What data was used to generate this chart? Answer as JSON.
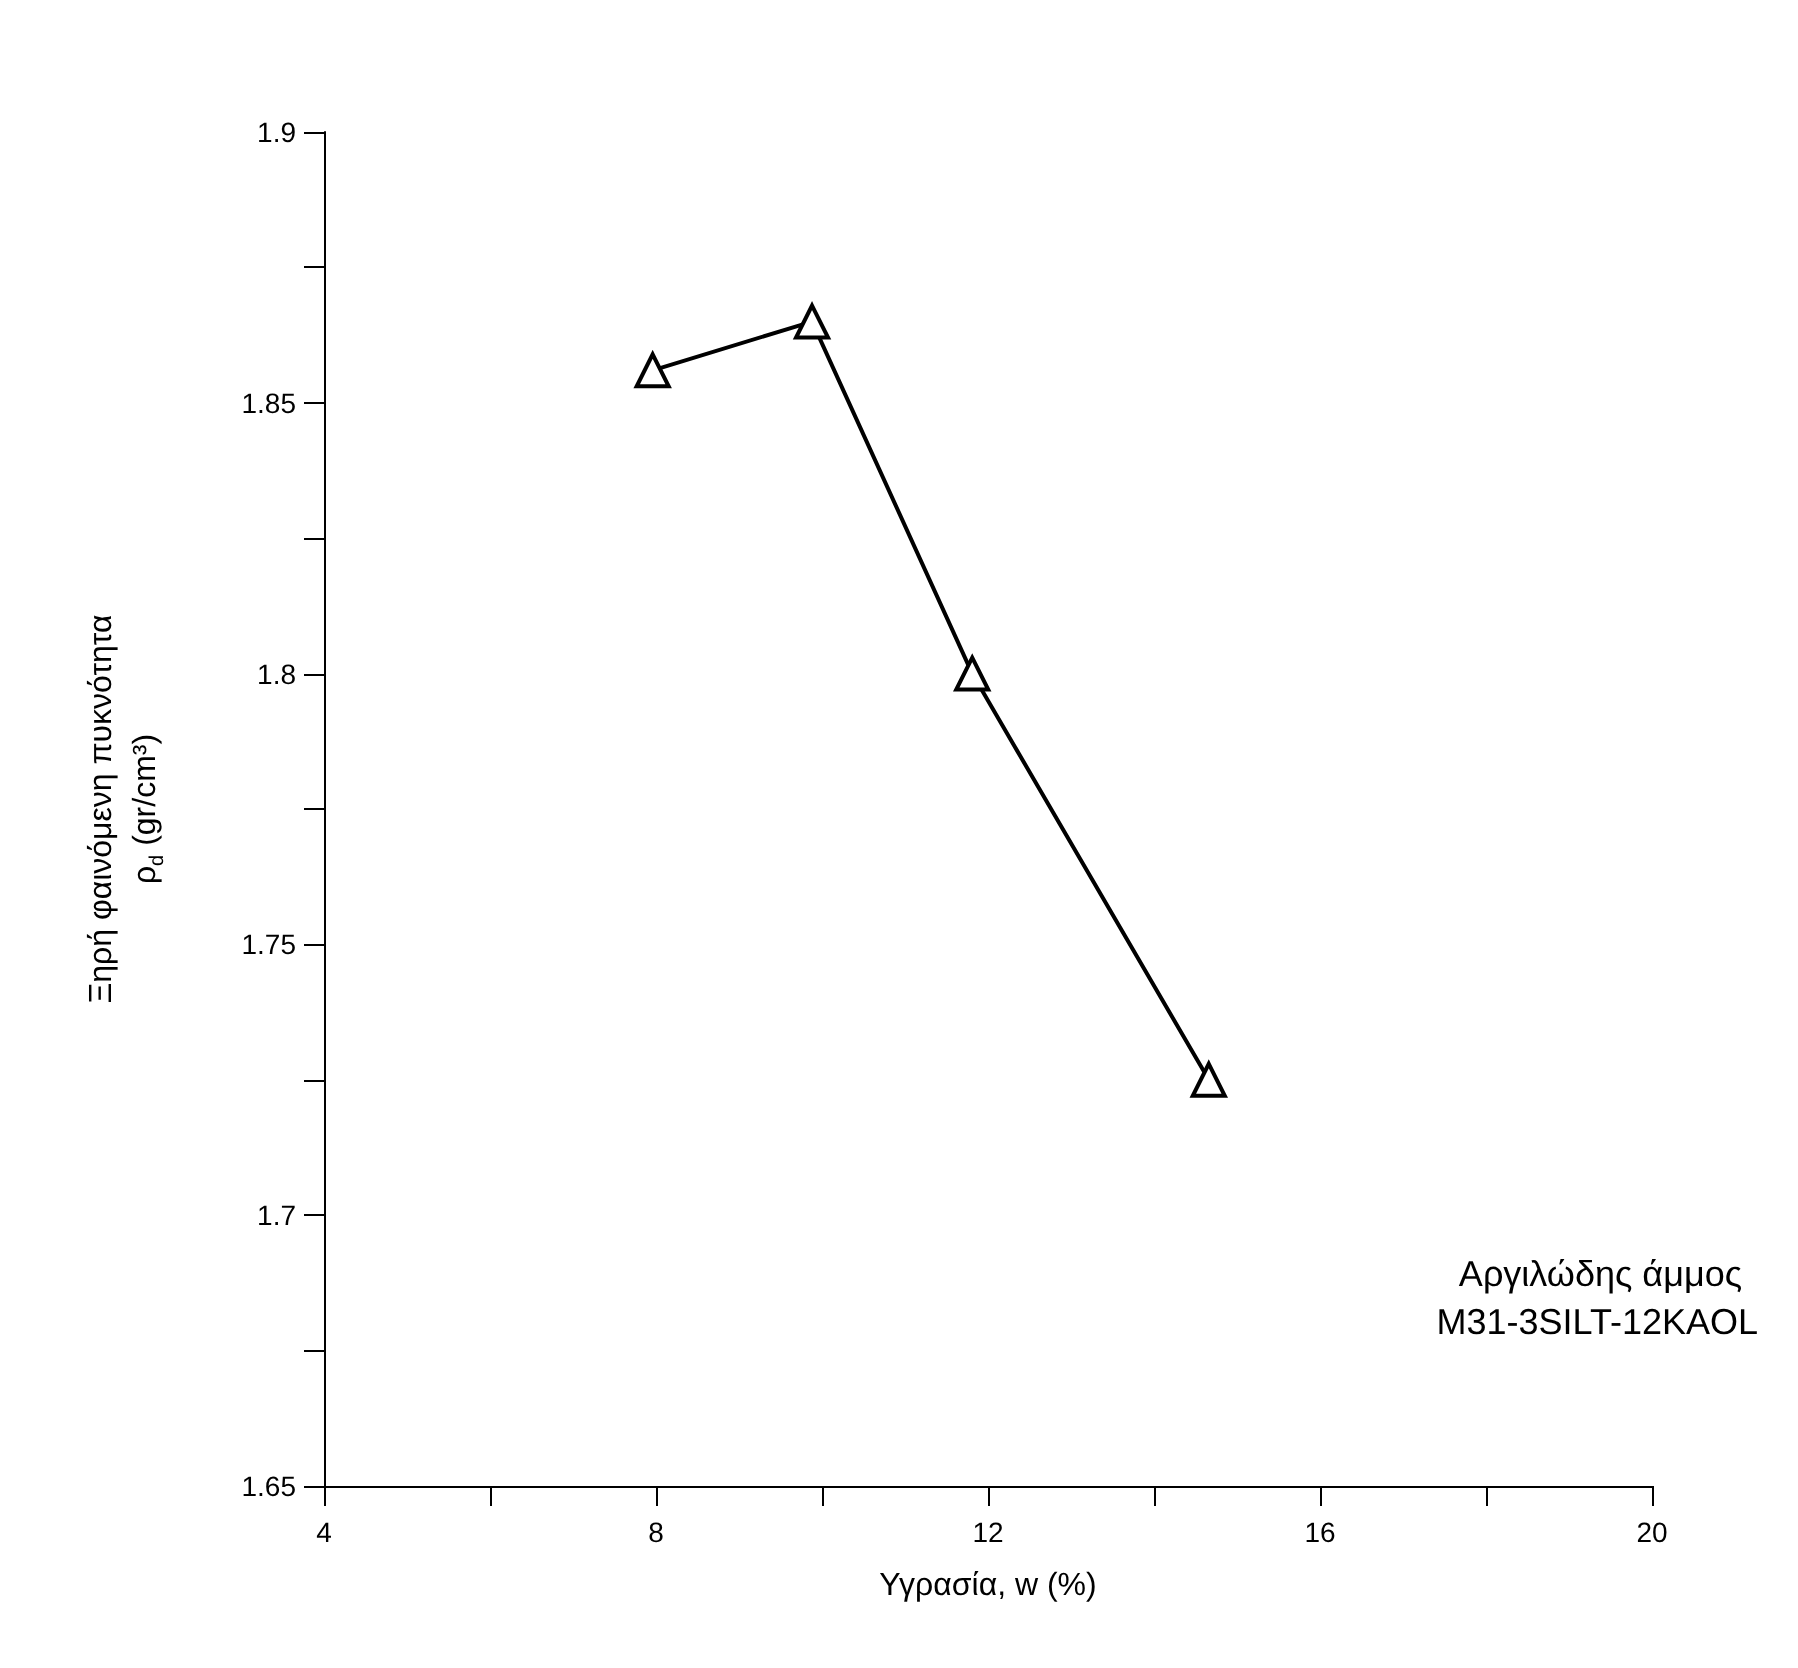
{
  "chart_data": {
    "type": "line",
    "xlabel": "Υγρασία, w (%)",
    "ylabel": "Ξηρή φαινόμενη πυκνότητα\nρ$_{d}$ (gr/cm³)",
    "x": [
      7.96,
      9.88,
      11.81,
      14.66
    ],
    "series": [
      {
        "color": "#000000",
        "values": [
          1.856,
          1.865,
          1.8,
          1.725
        ]
      }
    ],
    "marker": "triangle",
    "line_style": "solid",
    "xlim": [
      4,
      20
    ],
    "xticks": [
      4,
      {
        "value": 6,
        "label": null
      },
      8,
      {
        "value": 10,
        "label": null
      },
      12,
      {
        "value": 14,
        "label": null
      },
      16,
      {
        "value": 18,
        "label": null
      },
      20
    ],
    "ylim": [
      1.65,
      1.9
    ],
    "yticks": [
      1.65,
      {
        "value": 1.675,
        "label": null
      },
      1.7,
      {
        "value": 1.725,
        "label": null
      },
      1.75,
      {
        "value": 1.775,
        "label": null
      },
      1.8,
      {
        "value": 1.825,
        "label": null
      },
      1.85,
      {
        "value": 1.875,
        "label": null
      },
      1.9
    ],
    "annotations": [
      "Αργιλώδης άμμος",
      "M31-3SILT-12KAOL"
    ]
  }
}
